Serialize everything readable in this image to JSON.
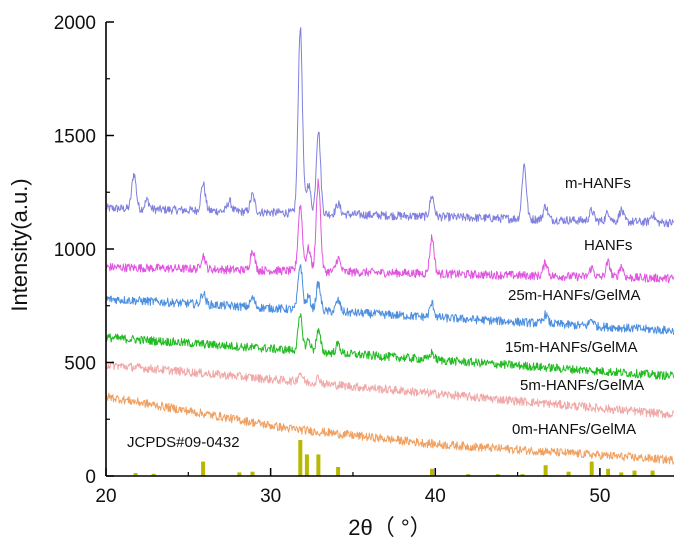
{
  "chart_data": {
    "type": "line",
    "xlabel": "2θ（ °）",
    "ylabel": "Intensity(a.u.)",
    "xlim": [
      20,
      54.5
    ],
    "ylim": [
      0,
      2000
    ],
    "xticks": [
      20,
      30,
      40,
      50
    ],
    "yticks": [
      0,
      500,
      1000,
      1500,
      2000
    ],
    "grid": false,
    "series": [
      {
        "name": "m-HANFs",
        "color": "#8080e0",
        "baseline": [
          [
            20,
            1180
          ],
          [
            54.5,
            1115
          ]
        ],
        "peaks": [
          [
            21.7,
            155
          ],
          [
            22.5,
            40
          ],
          [
            25.9,
            120
          ],
          [
            27.5,
            45
          ],
          [
            28.9,
            75
          ],
          [
            31.8,
            820
          ],
          [
            32.3,
            130
          ],
          [
            32.9,
            370
          ],
          [
            34.1,
            45
          ],
          [
            39.8,
            90
          ],
          [
            45.4,
            240
          ],
          [
            46.7,
            60
          ],
          [
            49.5,
            45
          ],
          [
            50.5,
            40
          ],
          [
            51.3,
            50
          ],
          [
            53.2,
            35
          ]
        ]
      },
      {
        "name": "HANFs",
        "color": "#e055e0",
        "baseline": [
          [
            20,
            920
          ],
          [
            54.5,
            870
          ]
        ],
        "peaks": [
          [
            25.9,
            60
          ],
          [
            28.9,
            90
          ],
          [
            31.8,
            290
          ],
          [
            32.3,
            100
          ],
          [
            32.9,
            400
          ],
          [
            34.1,
            60
          ],
          [
            39.8,
            160
          ],
          [
            46.7,
            60
          ],
          [
            49.5,
            40
          ],
          [
            50.5,
            65
          ],
          [
            51.3,
            50
          ]
        ]
      },
      {
        "name": "25m-HANFs/GelMA",
        "color": "#4c8fe0",
        "baseline": [
          [
            20,
            780
          ],
          [
            54.5,
            640
          ]
        ],
        "peaks": [
          [
            25.9,
            50
          ],
          [
            28.9,
            40
          ],
          [
            31.8,
            200
          ],
          [
            32.3,
            60
          ],
          [
            32.9,
            120
          ],
          [
            34.1,
            50
          ],
          [
            39.8,
            60
          ],
          [
            46.7,
            40
          ],
          [
            49.5,
            30
          ]
        ]
      },
      {
        "name": "15m-HANFs/GelMA",
        "color": "#22bb22",
        "baseline": [
          [
            20,
            610
          ],
          [
            54.5,
            440
          ]
        ],
        "peaks": [
          [
            31.8,
            150
          ],
          [
            32.3,
            50
          ],
          [
            32.9,
            90
          ],
          [
            34.1,
            40
          ],
          [
            39.8,
            30
          ]
        ]
      },
      {
        "name": "5m-HANFs/GelMA",
        "color": "#f0a8a8",
        "baseline": [
          [
            20,
            490
          ],
          [
            54.5,
            270
          ]
        ],
        "peaks": [
          [
            31.8,
            40
          ],
          [
            32.9,
            25
          ]
        ]
      },
      {
        "name": "0m-HANFs/GelMA",
        "color": "#f0a060",
        "baseline": [
          [
            20,
            350
          ],
          [
            31,
            210
          ],
          [
            40,
            140
          ],
          [
            54.5,
            70
          ]
        ],
        "peaks": []
      }
    ],
    "reference": {
      "name": "JCPDS#09-0432",
      "color": "#b8b800",
      "bars": [
        [
          21.8,
          8
        ],
        [
          22.9,
          6
        ],
        [
          25.9,
          40
        ],
        [
          28.1,
          10
        ],
        [
          28.9,
          12
        ],
        [
          31.8,
          100
        ],
        [
          32.2,
          60
        ],
        [
          32.9,
          60
        ],
        [
          34.1,
          25
        ],
        [
          39.8,
          20
        ],
        [
          42.0,
          5
        ],
        [
          43.8,
          5
        ],
        [
          45.3,
          5
        ],
        [
          46.7,
          30
        ],
        [
          48.1,
          12
        ],
        [
          49.5,
          40
        ],
        [
          50.5,
          20
        ],
        [
          51.3,
          10
        ],
        [
          52.1,
          15
        ],
        [
          53.2,
          15
        ]
      ]
    }
  }
}
